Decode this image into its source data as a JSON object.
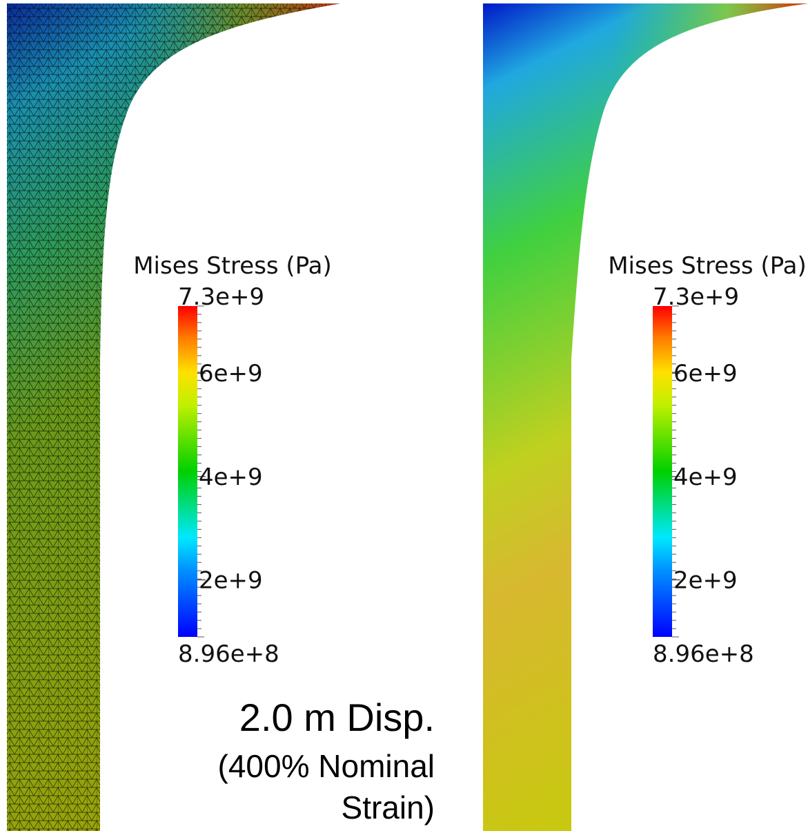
{
  "panels": [
    {
      "colorbar": {
        "title": "Mises Stress (Pa)",
        "range": [
          {
            "value": 896000000,
            "label": "8.96e+8"
          },
          {
            "value": 7300000000,
            "label": "7.3e+9"
          }
        ],
        "ticks": [
          {
            "value": 2000000000,
            "label": "2e+9"
          },
          {
            "value": 4000000000,
            "label": "4e+9"
          },
          {
            "value": 6000000000,
            "label": "6e+9"
          }
        ]
      }
    },
    {
      "colorbar": {
        "title": "Mises Stress (Pa)",
        "range": [
          {
            "value": 896000000,
            "label": "8.96e+8"
          },
          {
            "value": 7300000000,
            "label": "7.3e+9"
          }
        ],
        "ticks": [
          {
            "value": 2000000000,
            "label": "2e+9"
          },
          {
            "value": 4000000000,
            "label": "4e+9"
          },
          {
            "value": 6000000000,
            "label": "6e+9"
          }
        ]
      }
    }
  ],
  "caption": {
    "lines": [
      "2.0 m Disp.",
      "(400% Nominal",
      "Strain)"
    ]
  }
}
